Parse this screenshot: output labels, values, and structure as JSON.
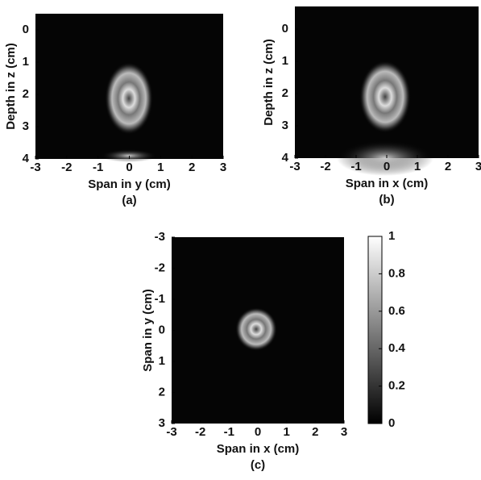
{
  "chart_data": [
    {
      "type": "heatmap",
      "caption": "(a)",
      "xlabel": "Span in y (cm)",
      "ylabel": "Depth in z (cm)",
      "xlim": [
        -3,
        3
      ],
      "ylim": [
        -0.5,
        4
      ],
      "y_inverted": true,
      "xticks": [
        -3,
        -2,
        -1,
        0,
        1,
        2,
        3
      ],
      "yticks": [
        0,
        1,
        2,
        3,
        4
      ]
    },
    {
      "type": "heatmap",
      "caption": "(b)",
      "xlabel": "Span in x (cm)",
      "ylabel": "Depth in z (cm)",
      "xlim": [
        -3,
        3
      ],
      "ylim": [
        -0.7,
        4
      ],
      "y_inverted": true,
      "xticks": [
        -3,
        -2,
        -1,
        0,
        1,
        2,
        3
      ],
      "yticks": [
        0,
        1,
        2,
        3,
        4
      ]
    },
    {
      "type": "heatmap",
      "caption": "(c)",
      "xlabel": "Span in x (cm)",
      "ylabel": "Span in y (cm)",
      "xlim": [
        -3,
        3
      ],
      "ylim": [
        -3,
        3
      ],
      "y_inverted": true,
      "xticks": [
        -3,
        -2,
        -1,
        0,
        1,
        2,
        3
      ],
      "yticks": [
        -3,
        -2,
        -1,
        0,
        1,
        2,
        3
      ],
      "colorbar": {
        "lim": [
          0,
          1
        ],
        "ticks": [
          0,
          0.2,
          0.4,
          0.6,
          0.8,
          1
        ]
      }
    }
  ]
}
